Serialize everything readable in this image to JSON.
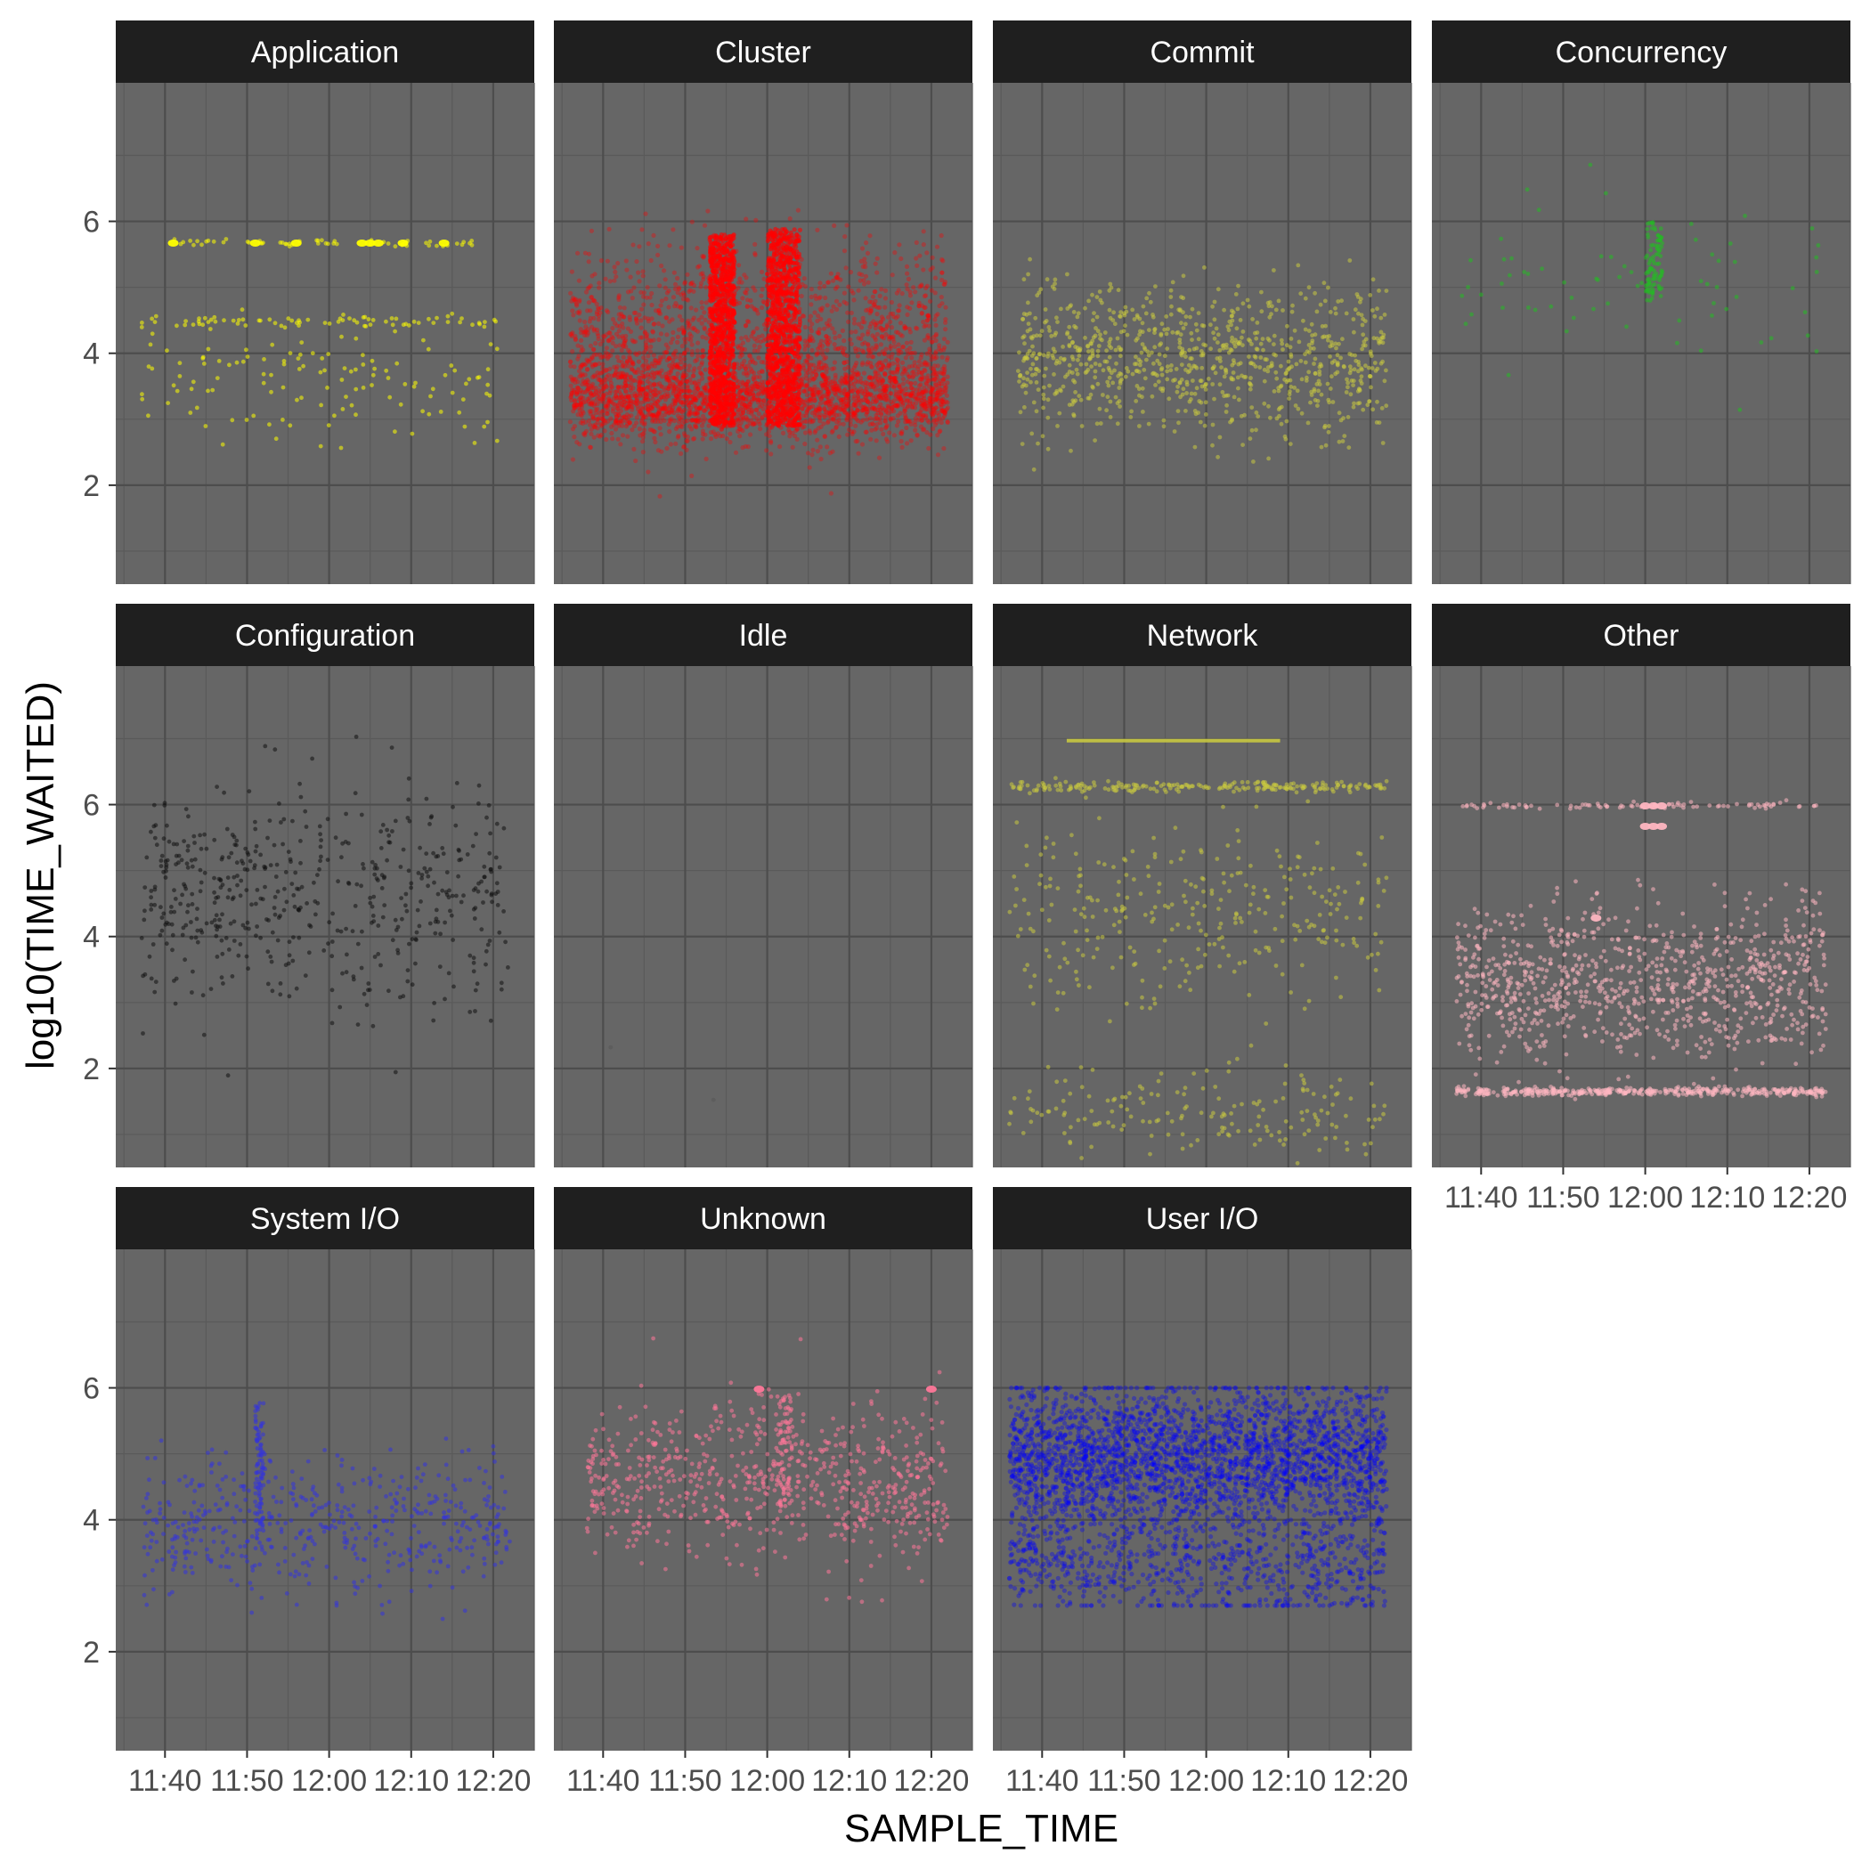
{
  "chart_data": {
    "type": "scatter",
    "xlabel": "SAMPLE_TIME",
    "ylabel": "log10(TIME_WAITED)",
    "x_range": [
      "11:34",
      "12:25"
    ],
    "y_range": [
      0.5,
      8.1
    ],
    "x_ticks": [
      "11:40",
      "11:50",
      "12:00",
      "12:10",
      "12:20"
    ],
    "y_ticks": [
      2,
      4,
      6
    ],
    "grid": true,
    "panel_background": "#666666",
    "strip_background": "#1f1f1f",
    "legend": "none",
    "facets": [
      {
        "name": "Application",
        "color": "#ffff00",
        "x_span": [
          "11:37",
          "12:21"
        ],
        "bands": [
          {
            "y": 5.67,
            "spread": 0.03,
            "weight": 0.22,
            "time_span": [
              "11:41",
              "12:18"
            ]
          },
          {
            "y": 4.48,
            "spread": 0.04,
            "weight": 0.25
          },
          {
            "y": 3.6,
            "spread": 0.5,
            "weight": 0.53
          }
        ],
        "approx_points": 260,
        "highlights": [
          {
            "x": "11:41",
            "y": 5.67
          },
          {
            "x": "11:51",
            "y": 5.67
          },
          {
            "x": "11:56",
            "y": 5.67
          },
          {
            "x": "12:04",
            "y": 5.67
          },
          {
            "x": "12:05",
            "y": 5.67
          },
          {
            "x": "12:06",
            "y": 5.67
          },
          {
            "x": "12:09",
            "y": 5.67
          },
          {
            "x": "12:14",
            "y": 5.67
          }
        ]
      },
      {
        "name": "Cluster",
        "color": "#ff0000",
        "x_span": [
          "11:36",
          "12:22"
        ],
        "bands": [
          {
            "y": 3.3,
            "spread": 0.3,
            "weight": 0.55
          },
          {
            "y": 4.2,
            "spread": 0.7,
            "weight": 0.45
          }
        ],
        "bursts": [
          {
            "time_span": [
              "11:53",
              "11:56"
            ],
            "y_top": 5.8
          },
          {
            "time_span": [
              "12:00",
              "12:04"
            ],
            "y_top": 5.9
          }
        ],
        "y_max": 6.1,
        "approx_points": 6000
      },
      {
        "name": "Commit",
        "color": "#c8c840",
        "x_span": [
          "11:37",
          "12:22"
        ],
        "bands": [
          {
            "y": 3.9,
            "spread": 0.55,
            "weight": 1.0
          }
        ],
        "approx_points": 900
      },
      {
        "name": "Concurrency",
        "color": "#22bb22",
        "x_span": [
          "11:37",
          "12:22"
        ],
        "bands": [
          {
            "y": 5.2,
            "spread": 0.7,
            "weight": 1.0
          }
        ],
        "bursts": [
          {
            "time_span": [
              "12:00",
              "12:02"
            ],
            "y_top": 6.0
          }
        ],
        "approx_points": 70
      },
      {
        "name": "Configuration",
        "color": "#111111",
        "x_span": [
          "11:37",
          "12:22"
        ],
        "bands": [
          {
            "y": 4.6,
            "spread": 0.8,
            "weight": 1.0
          }
        ],
        "approx_points": 520
      },
      {
        "name": "Idle",
        "color": "#555555",
        "bands": [
          {
            "y": 2.0,
            "spread": 0.5,
            "weight": 1.0
          }
        ],
        "approx_points": 2
      },
      {
        "name": "Network",
        "color": "#c8c840",
        "x_span": [
          "11:36",
          "12:22"
        ],
        "segments": [
          {
            "time_span": [
              "11:43",
              "12:09"
            ],
            "y": 6.97
          }
        ],
        "bands": [
          {
            "y": 6.27,
            "spread": 0.04,
            "weight": 0.3
          },
          {
            "y": 4.3,
            "spread": 0.7,
            "weight": 0.45
          },
          {
            "y": 1.3,
            "spread": 0.3,
            "weight": 0.25
          }
        ],
        "approx_points": 700
      },
      {
        "name": "Other",
        "color": "#ffb6c1",
        "x_span": [
          "11:37",
          "12:22"
        ],
        "bands": [
          {
            "y": 5.98,
            "spread": 0.02,
            "weight": 0.06
          },
          {
            "y": 1.65,
            "spread": 0.03,
            "weight": 0.3
          },
          {
            "y": 3.3,
            "spread": 0.6,
            "weight": 0.64
          }
        ],
        "highlights": [
          {
            "x": "12:00",
            "y": 5.98
          },
          {
            "x": "12:01",
            "y": 5.98
          },
          {
            "x": "12:02",
            "y": 5.98
          },
          {
            "x": "12:00",
            "y": 5.67
          },
          {
            "x": "12:01",
            "y": 5.67
          },
          {
            "x": "12:02",
            "y": 5.67
          },
          {
            "x": "11:54",
            "y": 4.28
          }
        ],
        "approx_points": 1400
      },
      {
        "name": "System I/O",
        "color": "#3333dd",
        "x_span": [
          "11:37",
          "12:22"
        ],
        "bands": [
          {
            "y": 3.9,
            "spread": 0.55,
            "weight": 1.0
          }
        ],
        "bursts": [
          {
            "time_span": [
              "11:51",
              "11:52"
            ],
            "y_top": 5.8
          }
        ],
        "approx_points": 520
      },
      {
        "name": "Unknown",
        "color": "#ff7799",
        "x_span": [
          "11:38",
          "12:22"
        ],
        "bands": [
          {
            "y": 4.6,
            "spread": 0.6,
            "weight": 1.0
          }
        ],
        "bursts": [
          {
            "time_span": [
              "12:01",
              "12:03"
            ],
            "y_top": 5.9
          }
        ],
        "highlights": [
          {
            "x": "11:59",
            "y": 5.98
          },
          {
            "x": "12:20",
            "y": 5.98
          }
        ],
        "approx_points": 700
      },
      {
        "name": "User I/O",
        "color": "#0000ff",
        "x_span": [
          "11:36",
          "12:22"
        ],
        "bands": [
          {
            "y": 4.9,
            "spread": 0.55,
            "weight": 0.8
          },
          {
            "y": 3.3,
            "spread": 0.4,
            "weight": 0.2
          }
        ],
        "y_span": [
          2.7,
          6.0
        ],
        "approx_points": 9000
      }
    ]
  }
}
